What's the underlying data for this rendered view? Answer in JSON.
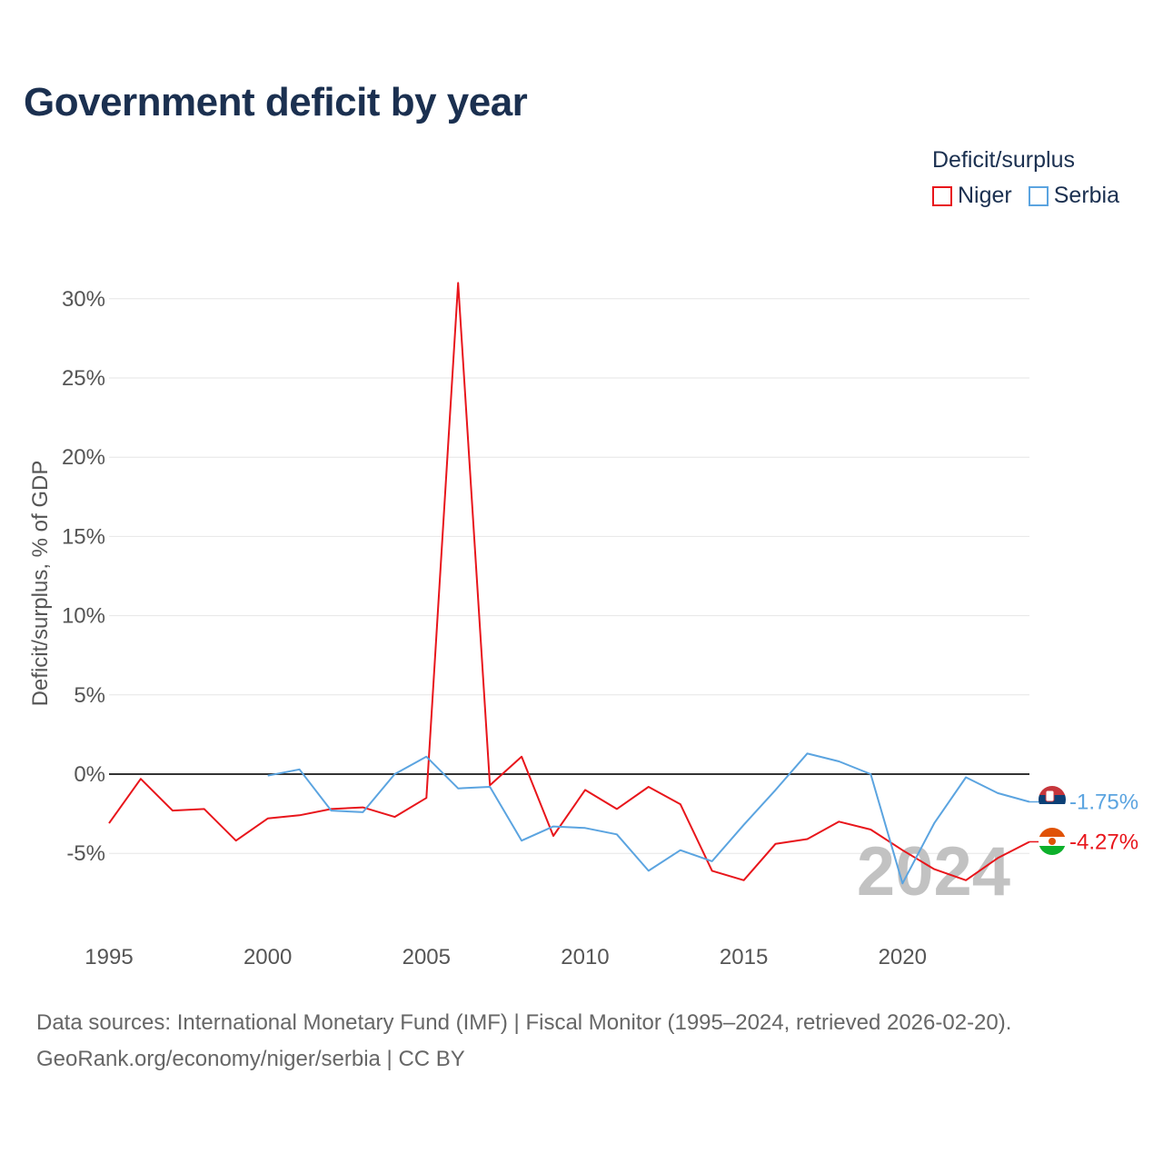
{
  "header": {
    "title": "Government deficit by year"
  },
  "legend": {
    "title": "Deficit/surplus",
    "items": [
      {
        "label": "Niger",
        "color": "#e8151b"
      },
      {
        "label": "Serbia",
        "color": "#5ba4e0"
      }
    ]
  },
  "footer": {
    "line1": "Data sources: International Monetary Fund (IMF) | Fiscal Monitor (1995–2024, retrieved 2026-02-20).",
    "line2": "GeoRank.org/economy/niger/serbia | CC BY"
  },
  "chart_data": {
    "type": "line",
    "title": "Government deficit by year",
    "ylabel": "Deficit/surplus, % of GDP",
    "xlabel": "",
    "xlim": [
      1995,
      2024
    ],
    "ylim": [
      -10,
      31
    ],
    "x_ticks": [
      1995,
      2000,
      2005,
      2010,
      2015,
      2020
    ],
    "y_ticks": [
      30,
      25,
      20,
      15,
      10,
      5,
      0,
      -5
    ],
    "y_tick_labels": [
      "30%",
      "25%",
      "20%",
      "15%",
      "10%",
      "5%",
      "0%",
      "-5%"
    ],
    "watermark_year": "2024",
    "series": [
      {
        "name": "Niger",
        "color": "#e8151b",
        "x": [
          1995,
          1996,
          1997,
          1998,
          1999,
          2000,
          2001,
          2002,
          2003,
          2004,
          2005,
          2006,
          2007,
          2008,
          2009,
          2010,
          2011,
          2012,
          2013,
          2014,
          2015,
          2016,
          2017,
          2018,
          2019,
          2020,
          2021,
          2022,
          2023,
          2024
        ],
        "values": [
          -3.1,
          -0.3,
          -2.3,
          -2.2,
          -4.2,
          -2.8,
          -2.6,
          -2.2,
          -2.1,
          -2.7,
          -1.5,
          31.0,
          -0.7,
          1.1,
          -3.9,
          -1.0,
          -2.2,
          -0.8,
          -1.9,
          -6.1,
          -6.7,
          -4.4,
          -4.1,
          -3.0,
          -3.5,
          -4.8,
          -6.0,
          -6.7,
          -5.3,
          -4.27
        ],
        "end_label": "-4.27%"
      },
      {
        "name": "Serbia",
        "color": "#5ba4e0",
        "x": [
          2000,
          2001,
          2002,
          2003,
          2004,
          2005,
          2006,
          2007,
          2008,
          2009,
          2010,
          2011,
          2012,
          2013,
          2014,
          2015,
          2016,
          2017,
          2018,
          2019,
          2020,
          2021,
          2022,
          2023,
          2024
        ],
        "values": [
          -0.1,
          0.3,
          -2.3,
          -2.4,
          0.0,
          1.1,
          -0.9,
          -0.8,
          -4.2,
          -3.3,
          -3.4,
          -3.8,
          -6.1,
          -4.8,
          -5.5,
          -3.2,
          -1.0,
          1.3,
          0.8,
          0.0,
          -6.9,
          -3.1,
          -0.2,
          -1.2,
          -1.75
        ],
        "end_label": "-1.75%"
      }
    ]
  }
}
